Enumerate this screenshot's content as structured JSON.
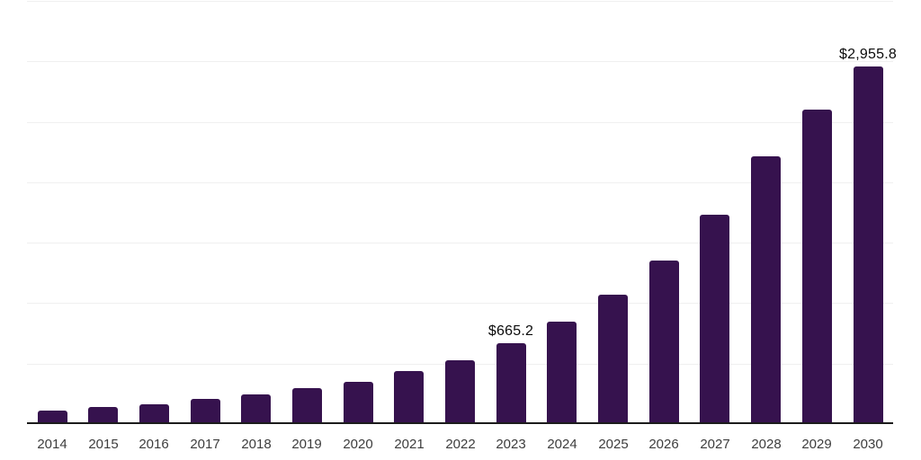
{
  "chart_data": {
    "type": "bar",
    "title": "",
    "categories": [
      "2014",
      "2015",
      "2016",
      "2017",
      "2018",
      "2019",
      "2020",
      "2021",
      "2022",
      "2023",
      "2024",
      "2025",
      "2026",
      "2027",
      "2028",
      "2029",
      "2030"
    ],
    "values": [
      111.4,
      138.9,
      166.1,
      209.8,
      245.3,
      299.6,
      348.9,
      440.7,
      527.6,
      665.2,
      844.9,
      1067.8,
      1352.1,
      1729.4,
      2214.5,
      2602.7,
      2955.8
    ],
    "data_labels": [
      {
        "category": "2023",
        "text": "$665.2"
      },
      {
        "category": "2030",
        "text": "$2,955.8"
      }
    ],
    "xlabel": "",
    "ylabel": "",
    "ylim": [
      0,
      3500
    ],
    "gridline_step": 500,
    "grid": "horizontal",
    "legend_position": "none",
    "bar_color": "#36124e",
    "gridline_color": "#f0f0f0",
    "axis_line_color": "#1c1c1c",
    "value_label_color": "#0b0b0b",
    "tick_label_color": "#3d3d3d"
  }
}
